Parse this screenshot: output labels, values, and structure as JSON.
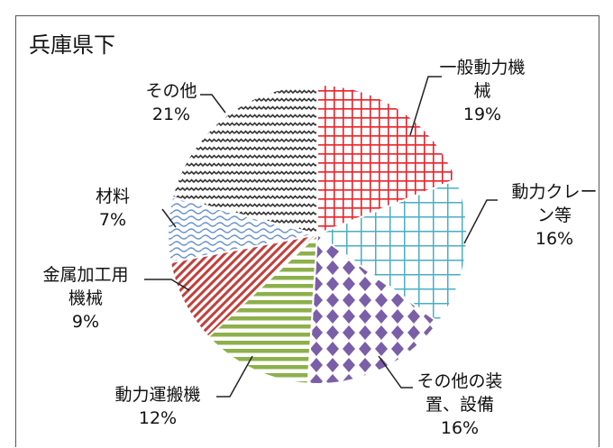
{
  "chart_data": {
    "type": "pie",
    "title": "兵庫県下",
    "categories": [
      "一般動力機械",
      "動力クレーン等",
      "その他の装置、設備",
      "動力運搬機",
      "金属加工用機械",
      "材料",
      "その他"
    ],
    "values": [
      19,
      16,
      16,
      12,
      9,
      7,
      21
    ],
    "value_labels": [
      "19%",
      "16%",
      "16%",
      "12%",
      "9%",
      "7%",
      "21%"
    ],
    "colors": [
      "#e8232a",
      "#4aaec4",
      "#7b5ea8",
      "#8cb04a",
      "#c0403c",
      "#6a93cc",
      "#333333"
    ]
  }
}
